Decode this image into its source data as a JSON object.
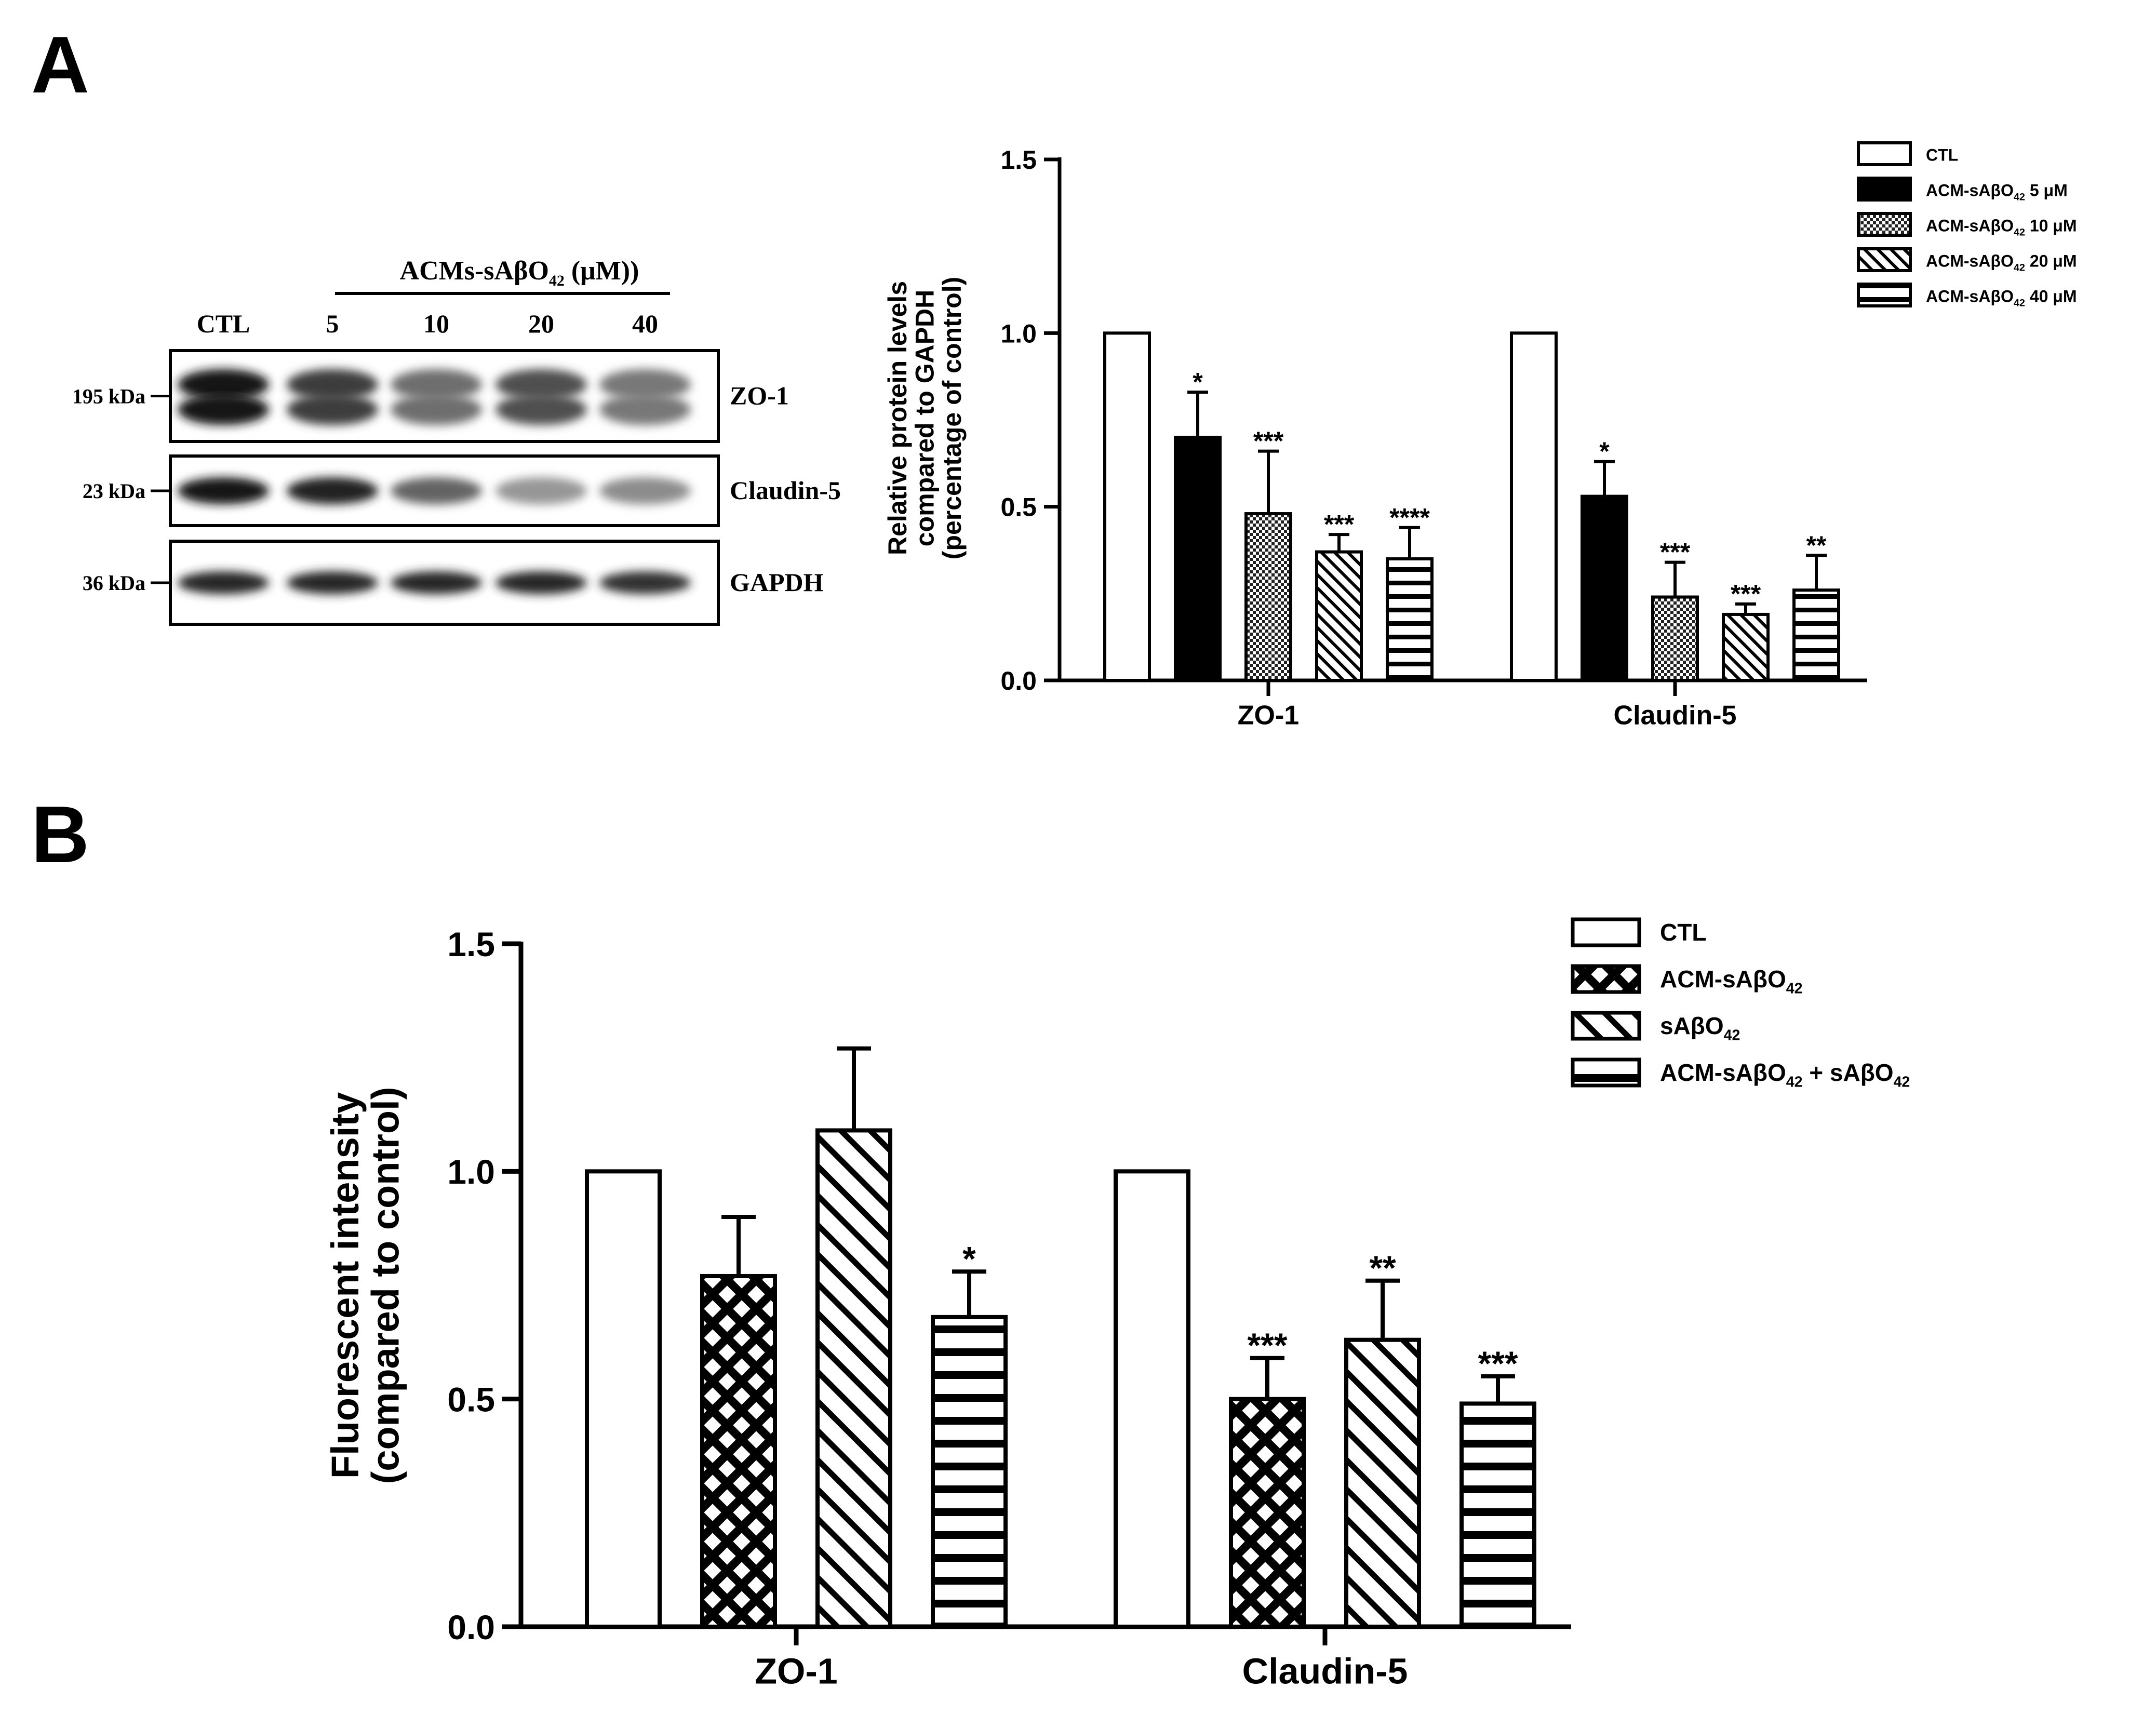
{
  "panels": {
    "a_letter": "A",
    "b_letter": "B"
  },
  "blot": {
    "treatment_label_main": "ACMs-sAβO",
    "treatment_label_sub": "42",
    "treatment_label_tail": " (μM))",
    "lanes": [
      "CTL",
      "5",
      "10",
      "20",
      "40"
    ],
    "lane_intensity": {
      "zo1": [
        1.0,
        0.8,
        0.55,
        0.7,
        0.5
      ],
      "claudin5": [
        1.0,
        0.92,
        0.6,
        0.35,
        0.4
      ],
      "gapdh": [
        0.9,
        0.9,
        0.9,
        0.9,
        0.85
      ]
    },
    "rows": [
      {
        "key": "zo1",
        "marker": "195 kDa",
        "protein": "ZO-1"
      },
      {
        "key": "claudin5",
        "marker": "23 kDa",
        "protein": "Claudin-5"
      },
      {
        "key": "gapdh",
        "marker": "36 kDa",
        "protein": "GAPDH"
      }
    ]
  },
  "colors": {
    "black": "#000000",
    "white": "#ffffff",
    "band": "#1a1a1a"
  },
  "chart_data": [
    {
      "type": "bar",
      "panel": "A",
      "ylabel": [
        "Relative protein levels",
        "compared to GAPDH",
        "(percentage of control)"
      ],
      "xlabel": "",
      "ylim": [
        0,
        1.5
      ],
      "yticks": [
        "0.0",
        "0.5",
        "1.0",
        "1.5"
      ],
      "yticks_values": [
        0,
        0.5,
        1.0,
        1.5
      ],
      "categories": [
        "ZO-1",
        "Claudin-5"
      ],
      "series": [
        {
          "name": "CTL",
          "legend_main": "CTL",
          "legend_sub": "",
          "legend_tail": "",
          "pattern": "white",
          "values": [
            1.0,
            1.0
          ],
          "errors": [
            0,
            0
          ],
          "stars": [
            "",
            ""
          ]
        },
        {
          "name": "ACM-sAβO42 5 μM",
          "legend_main": "ACM-sAβO",
          "legend_sub": "42",
          "legend_tail": " 5 μM",
          "pattern": "black",
          "values": [
            0.7,
            0.53
          ],
          "errors": [
            0.13,
            0.1
          ],
          "stars": [
            "*",
            "*"
          ]
        },
        {
          "name": "ACM-sAβO42 10 μM",
          "legend_main": "ACM-sAβO",
          "legend_sub": "42",
          "legend_tail": " 10 μM",
          "pattern": "checker",
          "values": [
            0.48,
            0.24
          ],
          "errors": [
            0.18,
            0.1
          ],
          "stars": [
            "***",
            "***"
          ]
        },
        {
          "name": "ACM-sAβO42 20 μM",
          "legend_main": "ACM-sAβO",
          "legend_sub": "42",
          "legend_tail": " 20 μM",
          "pattern": "diag",
          "values": [
            0.37,
            0.19
          ],
          "errors": [
            0.05,
            0.03
          ],
          "stars": [
            "***",
            "***"
          ]
        },
        {
          "name": "ACM-sAβO42 40 μM",
          "legend_main": "ACM-sAβO",
          "legend_sub": "42",
          "legend_tail": " 40 μM",
          "pattern": "hstripe",
          "values": [
            0.35,
            0.26
          ],
          "errors": [
            0.09,
            0.1
          ],
          "stars": [
            "****",
            "**"
          ]
        }
      ],
      "legend_position": "top-right",
      "grid": false
    },
    {
      "type": "bar",
      "panel": "B",
      "ylabel": [
        "Fluorescent intensity",
        "(compared to control)"
      ],
      "xlabel": "",
      "ylim": [
        0,
        1.5
      ],
      "yticks": [
        "0.0",
        "0.5",
        "1.0",
        "1.5"
      ],
      "yticks_values": [
        0,
        0.5,
        1.0,
        1.5
      ],
      "categories": [
        "ZO-1",
        "Claudin-5"
      ],
      "series": [
        {
          "name": "CTL",
          "legend_main": "CTL",
          "legend_sub": "",
          "legend_tail": "",
          "legend_sub2": "",
          "pattern": "white",
          "values": [
            1.0,
            1.0
          ],
          "errors": [
            0,
            0
          ],
          "stars": [
            "",
            ""
          ]
        },
        {
          "name": "ACM-sAβO42",
          "legend_main": "ACM-sAβO",
          "legend_sub": "42",
          "legend_tail": "",
          "legend_sub2": "",
          "pattern": "crosshatch",
          "values": [
            0.77,
            0.5
          ],
          "errors": [
            0.13,
            0.09
          ],
          "stars": [
            "",
            "***"
          ]
        },
        {
          "name": "sAβO42",
          "legend_main": "sAβO",
          "legend_sub": "42",
          "legend_tail": "",
          "legend_sub2": "",
          "pattern": "diagwide",
          "values": [
            1.09,
            0.63
          ],
          "errors": [
            0.18,
            0.13
          ],
          "stars": [
            "",
            "**"
          ]
        },
        {
          "name": "ACM-sAβO42 + sAβO42",
          "legend_main": "ACM-sAβO",
          "legend_sub": "42",
          "legend_tail": " + sAβO",
          "legend_sub2": "42",
          "pattern": "hstripewide",
          "values": [
            0.68,
            0.49
          ],
          "errors": [
            0.1,
            0.06
          ],
          "stars": [
            "*",
            "***"
          ]
        }
      ],
      "legend_position": "top-right",
      "grid": false
    }
  ]
}
